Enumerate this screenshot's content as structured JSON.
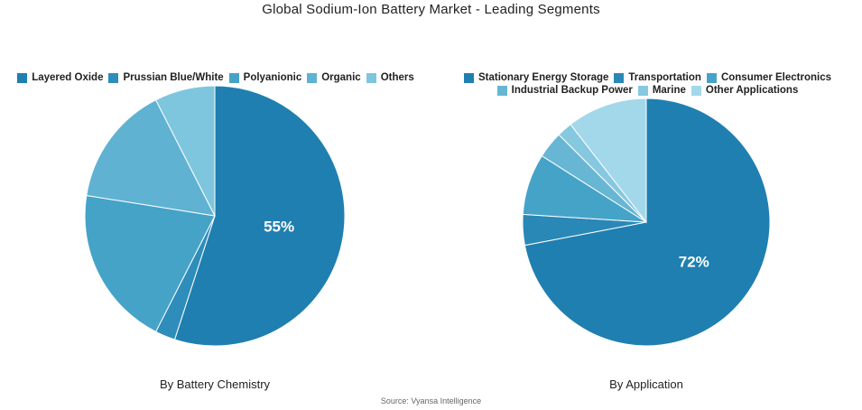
{
  "title": "Global Sodium-Ion Battery Market - Leading Segments",
  "source": "Source: Vyansa Intelligence",
  "chart_data": [
    {
      "type": "pie",
      "caption": "By Battery Chemistry",
      "categories": [
        "Layered Oxide",
        "Prussian Blue/White",
        "Polyanionic",
        "Organic",
        "Others"
      ],
      "values": [
        55,
        2.5,
        20,
        15,
        7.5
      ],
      "colors": [
        "#1f7fb0",
        "#2e8dba",
        "#46a3c8",
        "#5fb2d2",
        "#7ec6de"
      ],
      "data_labels": [
        "55%",
        "",
        "",
        "",
        ""
      ],
      "start_angle_deg": 0,
      "direction": "clockwise",
      "legend_position": "top"
    },
    {
      "type": "pie",
      "caption": "By Application",
      "categories": [
        "Stationary Energy Storage",
        "Transportation",
        "Consumer Electronics",
        "Industrial Backup Power",
        "Marine",
        "Other Applications"
      ],
      "values": [
        72,
        4,
        8,
        3.5,
        2,
        10.5
      ],
      "colors": [
        "#1f7fb0",
        "#2a88b6",
        "#46a3c8",
        "#66b6d4",
        "#86c8e0",
        "#a3d8ea"
      ],
      "data_labels": [
        "72%",
        "",
        "",
        "",
        "",
        ""
      ],
      "start_angle_deg": 0,
      "direction": "clockwise",
      "legend_position": "top"
    }
  ]
}
